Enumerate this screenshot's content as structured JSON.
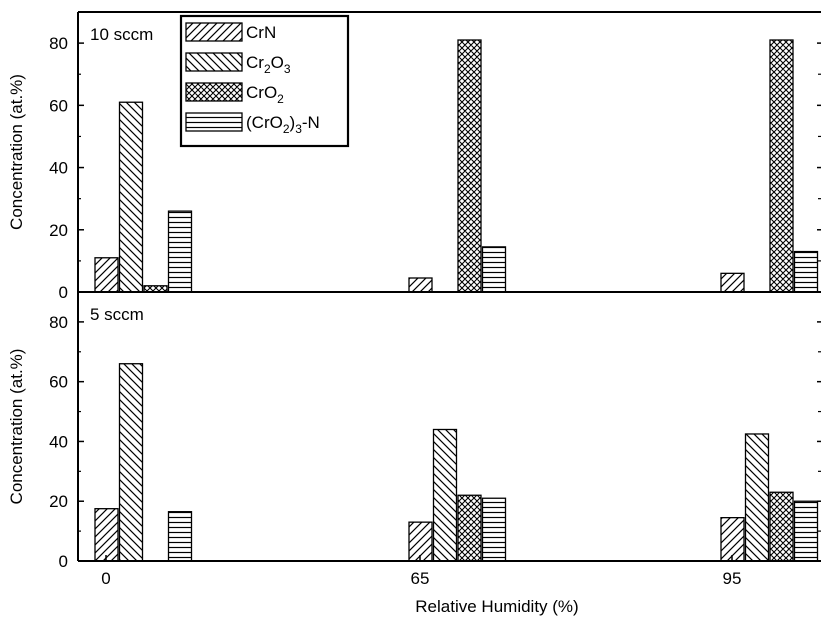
{
  "chart_data": [
    {
      "type": "bar",
      "panel_label": "10 sccm",
      "categories": [
        "0",
        "65",
        "95"
      ],
      "ylabel": "Concentration (at.%)",
      "ylim": [
        0,
        90
      ],
      "yticks": [
        "0",
        "20",
        "40",
        "60",
        "80"
      ],
      "series": [
        {
          "name": "CrN",
          "pattern": "forward-diagonal",
          "values": [
            11,
            4.5,
            6
          ]
        },
        {
          "name": "Cr2O3",
          "pattern": "back-diagonal",
          "values": [
            61,
            null,
            null
          ]
        },
        {
          "name": "CrO2",
          "pattern": "crosshatch",
          "values": [
            2,
            81,
            81
          ]
        },
        {
          "name": "(CrO2)3-N",
          "pattern": "horizontal",
          "values": [
            26,
            14.5,
            13
          ]
        }
      ]
    },
    {
      "type": "bar",
      "panel_label": "5 sccm",
      "categories": [
        "0",
        "65",
        "95"
      ],
      "xlabel": "Relative Humidity (%)",
      "ylabel": "Concentration (at.%)",
      "ylim": [
        0,
        90
      ],
      "yticks": [
        "0",
        "20",
        "40",
        "60",
        "80"
      ],
      "series": [
        {
          "name": "CrN",
          "pattern": "forward-diagonal",
          "values": [
            17.5,
            13,
            14.5
          ]
        },
        {
          "name": "Cr2O3",
          "pattern": "back-diagonal",
          "values": [
            66,
            44,
            42.5
          ]
        },
        {
          "name": "CrO2",
          "pattern": "crosshatch",
          "values": [
            null,
            22,
            23
          ]
        },
        {
          "name": "(CrO2)3-N",
          "pattern": "horizontal",
          "values": [
            16.5,
            21,
            20
          ]
        }
      ]
    }
  ],
  "legend": {
    "placement": "top-panel upper-left",
    "items": [
      {
        "pattern": "forward-diagonal",
        "parts": [
          {
            "t": "CrN",
            "sub": false
          }
        ]
      },
      {
        "pattern": "back-diagonal",
        "parts": [
          {
            "t": "Cr",
            "sub": false
          },
          {
            "t": "2",
            "sub": true
          },
          {
            "t": "O",
            "sub": false
          },
          {
            "t": "3",
            "sub": true
          }
        ]
      },
      {
        "pattern": "crosshatch",
        "parts": [
          {
            "t": "CrO",
            "sub": false
          },
          {
            "t": "2",
            "sub": true
          }
        ]
      },
      {
        "pattern": "horizontal",
        "parts": [
          {
            "t": "(CrO",
            "sub": false
          },
          {
            "t": "2",
            "sub": true
          },
          {
            "t": ")",
            "sub": false
          },
          {
            "t": "3",
            "sub": true
          },
          {
            "t": "-N",
            "sub": false
          }
        ]
      }
    ]
  }
}
